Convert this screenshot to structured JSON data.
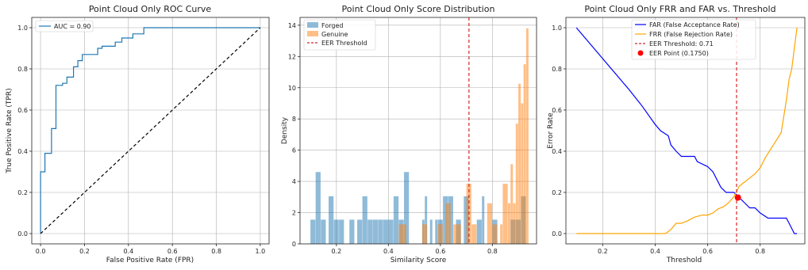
{
  "chart_data": [
    {
      "type": "line",
      "title": "Point Cloud Only ROC Curve",
      "xlabel": "False Positive Rate (FPR)",
      "ylabel": "True Positive Rate (TPR)",
      "xlim": [
        -0.04,
        1.04
      ],
      "ylim": [
        -0.05,
        1.05
      ],
      "xticks": [
        0.0,
        0.2,
        0.4,
        0.6,
        0.8,
        1.0
      ],
      "xtick_labels": [
        "0.0",
        "0.2",
        "0.4",
        "0.6",
        "0.8",
        "1.0"
      ],
      "yticks": [
        0.0,
        0.2,
        0.4,
        0.6,
        0.8,
        1.0
      ],
      "ytick_labels": [
        "0.0",
        "0.2",
        "0.4",
        "0.6",
        "0.8",
        "1.0"
      ],
      "grid": true,
      "legend_position": "upper-left",
      "series": [
        {
          "name": "AUC = 0.90",
          "color": "#1f77b4",
          "style": "solid",
          "x": [
            0.0,
            0.0,
            0.02,
            0.02,
            0.05,
            0.05,
            0.07,
            0.07,
            0.1,
            0.1,
            0.12,
            0.12,
            0.15,
            0.15,
            0.17,
            0.17,
            0.19,
            0.19,
            0.26,
            0.26,
            0.28,
            0.28,
            0.34,
            0.34,
            0.37,
            0.37,
            0.42,
            0.42,
            0.47,
            0.47,
            1.0
          ],
          "y": [
            0.0,
            0.3,
            0.3,
            0.39,
            0.39,
            0.51,
            0.51,
            0.72,
            0.72,
            0.73,
            0.73,
            0.76,
            0.76,
            0.81,
            0.81,
            0.84,
            0.84,
            0.87,
            0.87,
            0.9,
            0.9,
            0.91,
            0.91,
            0.93,
            0.93,
            0.95,
            0.95,
            0.97,
            0.97,
            1.0,
            1.0
          ]
        },
        {
          "name": "",
          "color": "#000000",
          "style": "dashed",
          "x": [
            0.0,
            1.0
          ],
          "y": [
            0.0,
            1.0
          ]
        }
      ]
    },
    {
      "type": "bar",
      "title": "Point Cloud Only Score Distribution",
      "xlabel": "Similarity Score",
      "ylabel": "Density",
      "xlim": [
        0.06,
        0.97
      ],
      "ylim": [
        0,
        14.5
      ],
      "xticks": [
        0.2,
        0.4,
        0.6,
        0.8
      ],
      "xtick_labels": [
        "0.2",
        "0.4",
        "0.6",
        "0.8"
      ],
      "yticks": [
        0,
        2,
        4,
        6,
        8,
        10,
        12,
        14
      ],
      "ytick_labels": [
        "0",
        "2",
        "4",
        "6",
        "8",
        "10",
        "12",
        "14"
      ],
      "grid": true,
      "legend_position": "upper-left",
      "threshold": 0.71,
      "threshold_label": "EER Threshold",
      "threshold_color": "#d62728",
      "series": [
        {
          "name": "Forged",
          "color": "#1f77b4",
          "opacity": 0.5,
          "bins": [
            [
              0.1,
              0.12,
              1.55
            ],
            [
              0.12,
              0.14,
              4.6
            ],
            [
              0.14,
              0.16,
              1.55
            ],
            [
              0.17,
              0.19,
              3.05
            ],
            [
              0.19,
              0.21,
              1.55
            ],
            [
              0.21,
              0.23,
              1.55
            ],
            [
              0.25,
              0.27,
              1.55
            ],
            [
              0.28,
              0.3,
              1.55
            ],
            [
              0.3,
              0.32,
              3.05
            ],
            [
              0.32,
              0.34,
              1.55
            ],
            [
              0.34,
              0.36,
              1.55
            ],
            [
              0.36,
              0.38,
              1.55
            ],
            [
              0.38,
              0.4,
              1.55
            ],
            [
              0.4,
              0.42,
              1.55
            ],
            [
              0.42,
              0.44,
              3.05
            ],
            [
              0.44,
              0.46,
              1.55
            ],
            [
              0.46,
              0.48,
              4.6
            ],
            [
              0.53,
              0.54,
              1.55
            ],
            [
              0.54,
              0.55,
              3.05
            ],
            [
              0.56,
              0.57,
              1.55
            ],
            [
              0.58,
              0.59,
              1.55
            ],
            [
              0.59,
              0.61,
              1.55
            ],
            [
              0.61,
              0.63,
              3.05
            ],
            [
              0.63,
              0.65,
              3.05
            ],
            [
              0.66,
              0.68,
              1.55
            ],
            [
              0.69,
              0.71,
              3.05
            ],
            [
              0.74,
              0.76,
              1.55
            ],
            [
              0.76,
              0.77,
              3.05
            ],
            [
              0.8,
              0.82,
              1.55
            ],
            [
              0.87,
              0.89,
              1.55
            ],
            [
              0.89,
              0.91,
              1.55
            ],
            [
              0.91,
              0.93,
              3.05
            ]
          ]
        },
        {
          "name": "Genuine",
          "color": "#ff7f0e",
          "opacity": 0.5,
          "bins": [
            [
              0.44,
              0.47,
              1.25
            ],
            [
              0.53,
              0.55,
              1.25
            ],
            [
              0.59,
              0.61,
              1.25
            ],
            [
              0.62,
              0.64,
              2.6
            ],
            [
              0.65,
              0.68,
              1.25
            ],
            [
              0.7,
              0.72,
              3.85
            ],
            [
              0.72,
              0.74,
              1.25
            ],
            [
              0.78,
              0.8,
              2.6
            ],
            [
              0.8,
              0.82,
              1.25
            ],
            [
              0.83,
              0.84,
              1.25
            ],
            [
              0.84,
              0.86,
              3.85
            ],
            [
              0.86,
              0.87,
              2.6
            ],
            [
              0.87,
              0.88,
              5.1
            ],
            [
              0.88,
              0.89,
              2.6
            ],
            [
              0.89,
              0.9,
              7.7
            ],
            [
              0.9,
              0.91,
              10.25
            ],
            [
              0.91,
              0.92,
              9.0
            ],
            [
              0.92,
              0.93,
              11.5
            ],
            [
              0.93,
              0.94,
              13.8
            ]
          ]
        }
      ]
    },
    {
      "type": "line",
      "title": "Point Cloud Only FRR and FAR vs. Threshold",
      "xlabel": "Threshold",
      "ylabel": "Error Rate",
      "xlim": [
        0.06,
        0.97
      ],
      "ylim": [
        -0.05,
        1.05
      ],
      "xticks": [
        0.2,
        0.4,
        0.6,
        0.8
      ],
      "xtick_labels": [
        "0.2",
        "0.4",
        "0.6",
        "0.8"
      ],
      "yticks": [
        0.0,
        0.2,
        0.4,
        0.6,
        0.8,
        1.0
      ],
      "ytick_labels": [
        "0.0",
        "0.2",
        "0.4",
        "0.6",
        "0.8",
        "1.0"
      ],
      "grid": true,
      "legend_position": "upper-center",
      "series": [
        {
          "name": "FAR (False Acceptance Rate)",
          "color": "#0000ff",
          "x": [
            0.1,
            0.2,
            0.3,
            0.35,
            0.4,
            0.42,
            0.45,
            0.46,
            0.48,
            0.5,
            0.55,
            0.56,
            0.6,
            0.62,
            0.65,
            0.67,
            0.7,
            0.72,
            0.74,
            0.76,
            0.78,
            0.8,
            0.83,
            0.86,
            0.89,
            0.9,
            0.91,
            0.92,
            0.93,
            0.94
          ],
          "y": [
            1.0,
            0.85,
            0.7,
            0.62,
            0.53,
            0.5,
            0.475,
            0.43,
            0.4,
            0.375,
            0.375,
            0.35,
            0.325,
            0.3,
            0.225,
            0.2,
            0.2,
            0.175,
            0.15,
            0.125,
            0.125,
            0.1,
            0.075,
            0.075,
            0.075,
            0.075,
            0.05,
            0.025,
            0.0,
            0.0
          ]
        },
        {
          "name": "FRR (False Rejection Rate)",
          "color": "#ffa500",
          "x": [
            0.1,
            0.2,
            0.3,
            0.44,
            0.46,
            0.48,
            0.5,
            0.52,
            0.55,
            0.58,
            0.6,
            0.62,
            0.64,
            0.66,
            0.68,
            0.7,
            0.72,
            0.74,
            0.76,
            0.78,
            0.8,
            0.82,
            0.85,
            0.88,
            0.9,
            0.91,
            0.92,
            0.93,
            0.94
          ],
          "y": [
            0.0,
            0.0,
            0.0,
            0.0,
            0.02,
            0.05,
            0.05,
            0.06,
            0.08,
            0.09,
            0.09,
            0.1,
            0.12,
            0.13,
            0.15,
            0.18,
            0.23,
            0.25,
            0.27,
            0.29,
            0.32,
            0.37,
            0.43,
            0.49,
            0.65,
            0.75,
            0.8,
            0.9,
            1.0
          ]
        }
      ],
      "threshold": 0.71,
      "threshold_label": "EER Threshold: 0.71",
      "threshold_color": "#d62728",
      "eer_point": {
        "x": 0.715,
        "y": 0.175,
        "label": "EER Point (0.1750)",
        "color": "#ff0000"
      }
    }
  ]
}
